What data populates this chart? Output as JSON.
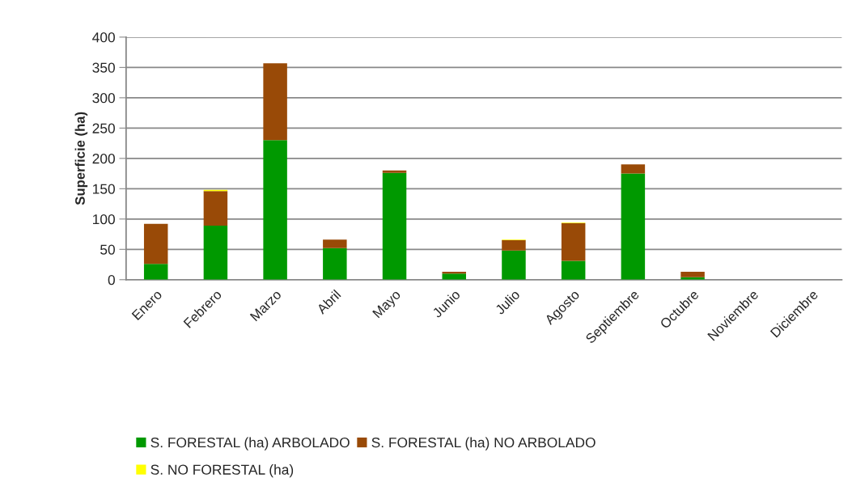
{
  "chart_data": {
    "type": "bar",
    "stacked": true,
    "ylabel": "Superficie (ha)",
    "categories": [
      "Enero",
      "Febrero",
      "Marzo",
      "Abril",
      "Mayo",
      "Junio",
      "Julio",
      "Agosto",
      "Septiembre",
      "Octubre",
      "Noviembre",
      "Diciembre"
    ],
    "series": [
      {
        "name": "S. FORESTAL (ha) ARBOLADO",
        "color": "#009900",
        "values": [
          26,
          89,
          230,
          52,
          176,
          10,
          48,
          31,
          175,
          4,
          0,
          0
        ]
      },
      {
        "name": "S. FORESTAL (ha) NO ARBOLADO",
        "color": "#994a07",
        "values": [
          66,
          57,
          127,
          14,
          4,
          3,
          17,
          62,
          15,
          9,
          0,
          0
        ]
      },
      {
        "name": "S. NO FORESTAL (ha)",
        "color": "#ffff00",
        "values": [
          0,
          2,
          0,
          0,
          0,
          0,
          1,
          1,
          0,
          0,
          0,
          0
        ]
      }
    ],
    "ylim": [
      0,
      400
    ],
    "yticks": [
      0,
      50,
      100,
      150,
      200,
      250,
      300,
      350,
      400
    ],
    "grid": "y",
    "legend": "bottom"
  }
}
